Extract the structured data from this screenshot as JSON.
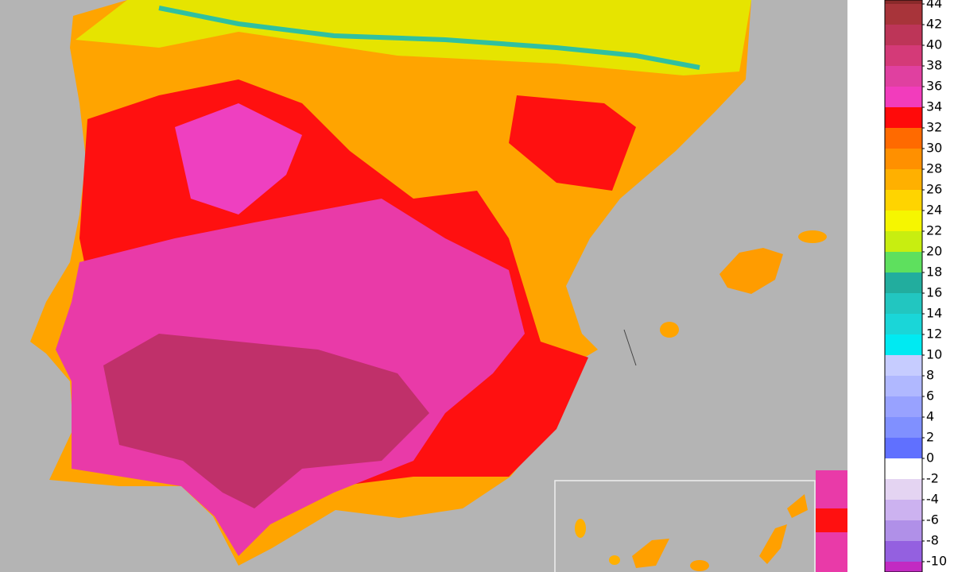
{
  "colorbar": {
    "levels": [
      44,
      42,
      40,
      38,
      36,
      34,
      32,
      30,
      28,
      26,
      24,
      22,
      20,
      18,
      16,
      14,
      12,
      10,
      8,
      6,
      4,
      2,
      0,
      -2,
      -4,
      -6,
      -8,
      -10
    ],
    "colors": [
      "#a8343a",
      "#bd3558",
      "#d43a78",
      "#e040a0",
      "#f23cbc",
      "#ff0a0a",
      "#ff6a00",
      "#ff9000",
      "#ffb000",
      "#ffd400",
      "#f6f600",
      "#c8ee10",
      "#5ee05e",
      "#22ad9e",
      "#22c6c0",
      "#1ad6d8",
      "#00eaf2",
      "#c6ccff",
      "#b0b8ff",
      "#98a2ff",
      "#8090ff",
      "#6070ff",
      "#ffffff",
      "#e4d4f2",
      "#ccb2f0",
      "#b090e8",
      "#9460e0"
    ]
  }
}
